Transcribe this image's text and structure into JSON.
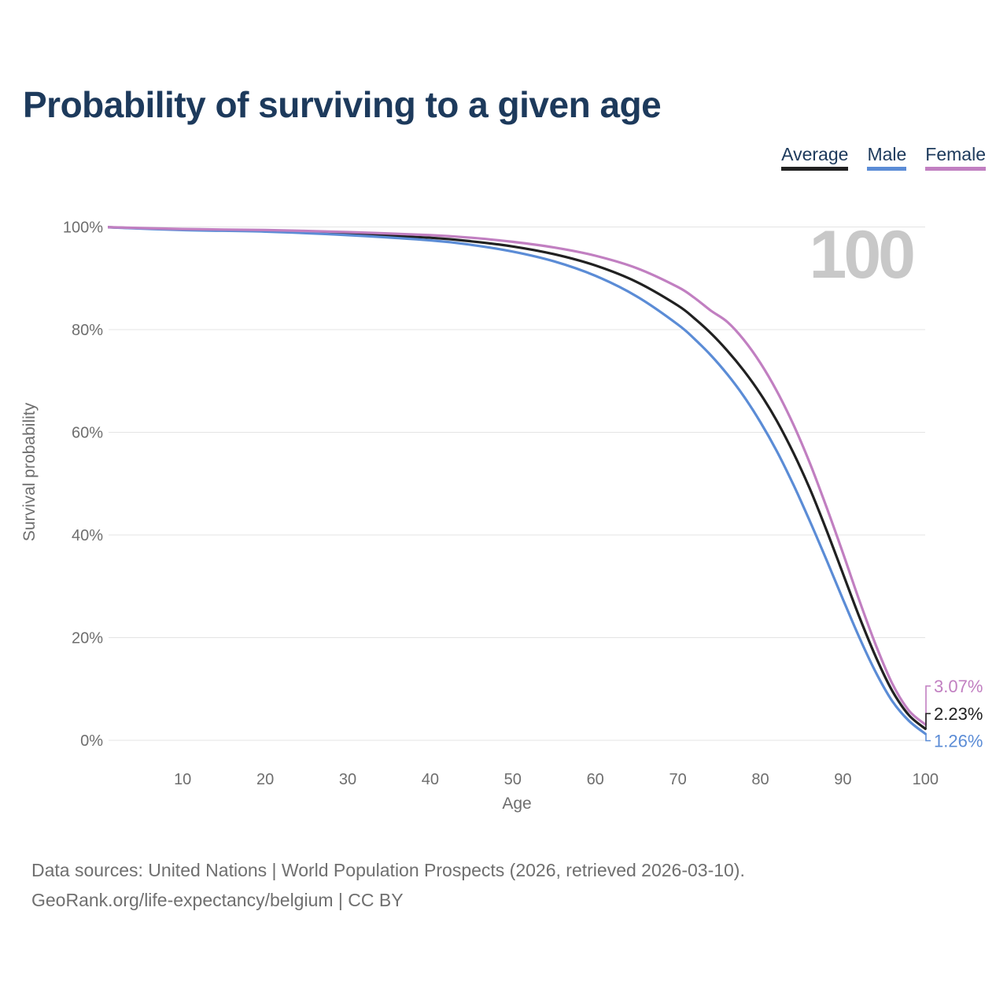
{
  "title": "Probability of surviving to a given age",
  "watermark": "100",
  "legend": {
    "items": [
      {
        "label": "Average",
        "color": "#212121"
      },
      {
        "label": "Male",
        "color": "#5b8cd6"
      },
      {
        "label": "Female",
        "color": "#c17fc1"
      }
    ]
  },
  "chart_data": {
    "type": "line",
    "title": "Probability of surviving to a given age",
    "xlabel": "Age",
    "ylabel": "Survival probability",
    "xlim": [
      1,
      100
    ],
    "ylim": [
      0,
      100
    ],
    "grid": "horizontal",
    "legend_position": "top-right",
    "x": [
      0,
      10,
      20,
      30,
      40,
      45,
      50,
      55,
      60,
      65,
      70,
      72,
      74,
      76,
      78,
      80,
      82,
      84,
      86,
      88,
      90,
      92,
      94,
      96,
      98,
      100
    ],
    "series": [
      {
        "name": "Average",
        "color": "#212121",
        "end_label": "2.23%",
        "values": [
          100,
          99.5,
          99.3,
          98.7,
          97.9,
          97.2,
          96.2,
          94.7,
          92.5,
          89.3,
          84.7,
          82.2,
          79.3,
          75.9,
          72.0,
          67.5,
          62.2,
          56.0,
          49.0,
          41.0,
          32.5,
          24.0,
          16.2,
          9.6,
          4.9,
          2.23
        ]
      },
      {
        "name": "Male",
        "color": "#5b8cd6",
        "end_label": "1.26%",
        "values": [
          100,
          99.4,
          99.1,
          98.4,
          97.4,
          96.5,
          95.2,
          93.3,
          90.5,
          86.5,
          81.0,
          78.2,
          75.0,
          71.3,
          67.0,
          62.0,
          56.3,
          49.8,
          42.7,
          35.2,
          27.5,
          20.0,
          13.2,
          7.6,
          3.8,
          1.26
        ]
      },
      {
        "name": "Female",
        "color": "#c17fc1",
        "end_label": "3.07%",
        "values": [
          100,
          99.6,
          99.4,
          99.0,
          98.4,
          97.9,
          97.1,
          96.0,
          94.4,
          92.0,
          88.3,
          86.2,
          83.7,
          81.5,
          78.0,
          73.5,
          68.0,
          61.5,
          54.0,
          45.5,
          36.5,
          27.2,
          18.5,
          11.0,
          5.8,
          3.07
        ]
      }
    ],
    "yticks": [
      {
        "value": 100,
        "label": "100%"
      },
      {
        "value": 80,
        "label": "80%"
      },
      {
        "value": 60,
        "label": "60%"
      },
      {
        "value": 40,
        "label": "40%"
      },
      {
        "value": 20,
        "label": "20%"
      },
      {
        "value": 0,
        "label": "0%"
      }
    ],
    "xticks": [
      {
        "value": 10,
        "label": "10"
      },
      {
        "value": 20,
        "label": "20"
      },
      {
        "value": 30,
        "label": "30"
      },
      {
        "value": 40,
        "label": "40"
      },
      {
        "value": 50,
        "label": "50"
      },
      {
        "value": 60,
        "label": "60"
      },
      {
        "value": 70,
        "label": "70"
      },
      {
        "value": 80,
        "label": "80"
      },
      {
        "value": 90,
        "label": "90"
      },
      {
        "value": 100,
        "label": "100"
      }
    ],
    "annotations": [
      {
        "text": "100",
        "role": "max-age-watermark"
      }
    ]
  },
  "footer": {
    "line1": "Data sources: United Nations | World Population Prospects (2026, retrieved 2026-03-10).",
    "line2": "GeoRank.org/life-expectancy/belgium | CC BY"
  }
}
